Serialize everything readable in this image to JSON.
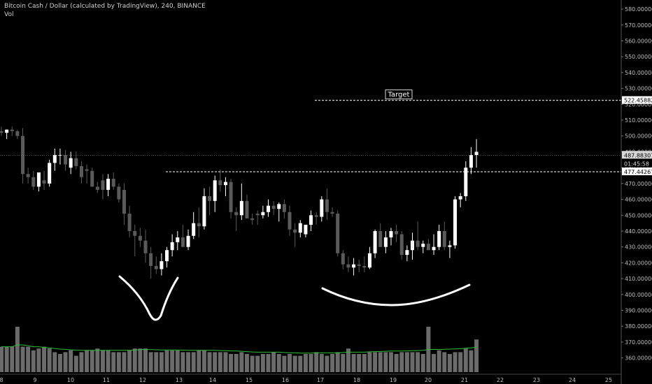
{
  "header": {
    "symbol_line": "Bitcoin Cash / Dollar (calculated by TradingView), 240, BINANCE",
    "indicator": "Vol"
  },
  "price_axis": {
    "tick_labels": [
      "580.000000",
      "570.000000",
      "560.000000",
      "550.000000",
      "540.000000",
      "530.000000",
      "520.000000",
      "510.000000",
      "500.000000",
      "490.000000",
      "480.000000",
      "470.000000",
      "460.000000",
      "450.000000",
      "440.000000",
      "430.000000",
      "420.000000",
      "410.000000",
      "400.000000",
      "390.000000",
      "380.000000",
      "370.000000",
      "360.000000"
    ],
    "tags": {
      "target": "522.458820",
      "current": "487.883073",
      "countdown": "01:45:58",
      "support": "477.442676"
    }
  },
  "time_axis": {
    "tick_labels": [
      "8",
      "9",
      "10",
      "11",
      "12",
      "13",
      "14",
      "15",
      "16",
      "17",
      "18",
      "19",
      "20",
      "21",
      "22",
      "23",
      "24",
      "25"
    ]
  },
  "annotations": {
    "target_label": "Target"
  },
  "colors": {
    "background": "#000000",
    "up_candle": "#ffffff",
    "down_candle": "#5a5a5a",
    "volume": "#6b6b6b",
    "volume_ma": "#2fbf3a",
    "dashed_line": "#ffffff"
  },
  "chart_data": {
    "type": "candlestick",
    "ylim": [
      355,
      584
    ],
    "price_levels": {
      "target": 522.45882,
      "support": 477.442676,
      "current": 487.883073
    },
    "candles": [
      {
        "o": 503,
        "h": 506,
        "l": 500,
        "c": 502
      },
      {
        "o": 502,
        "h": 504,
        "l": 498,
        "c": 504
      },
      {
        "o": 504,
        "h": 506,
        "l": 500,
        "c": 503
      },
      {
        "o": 503,
        "h": 504,
        "l": 498,
        "c": 500
      },
      {
        "o": 500,
        "h": 505,
        "l": 470,
        "c": 476
      },
      {
        "o": 476,
        "h": 480,
        "l": 470,
        "c": 474
      },
      {
        "o": 474,
        "h": 478,
        "l": 466,
        "c": 468
      },
      {
        "o": 468,
        "h": 477,
        "l": 465,
        "c": 477
      },
      {
        "o": 472,
        "h": 478,
        "l": 466,
        "c": 470
      },
      {
        "o": 470,
        "h": 485,
        "l": 468,
        "c": 483
      },
      {
        "o": 483,
        "h": 492,
        "l": 478,
        "c": 488
      },
      {
        "o": 488,
        "h": 492,
        "l": 482,
        "c": 488
      },
      {
        "o": 488,
        "h": 491,
        "l": 478,
        "c": 482
      },
      {
        "o": 480,
        "h": 490,
        "l": 476,
        "c": 486
      },
      {
        "o": 486,
        "h": 490,
        "l": 479,
        "c": 481
      },
      {
        "o": 481,
        "h": 484,
        "l": 470,
        "c": 474
      },
      {
        "o": 479,
        "h": 482,
        "l": 470,
        "c": 478
      },
      {
        "o": 478,
        "h": 480,
        "l": 468,
        "c": 468
      },
      {
        "o": 468,
        "h": 471,
        "l": 464,
        "c": 466
      },
      {
        "o": 472,
        "h": 476,
        "l": 460,
        "c": 466
      },
      {
        "o": 466,
        "h": 476,
        "l": 462,
        "c": 473
      },
      {
        "o": 473,
        "h": 477,
        "l": 466,
        "c": 468
      },
      {
        "o": 468,
        "h": 470,
        "l": 458,
        "c": 460
      },
      {
        "o": 466,
        "h": 470,
        "l": 444,
        "c": 451
      },
      {
        "o": 451,
        "h": 456,
        "l": 436,
        "c": 440
      },
      {
        "o": 440,
        "h": 444,
        "l": 424,
        "c": 437
      },
      {
        "o": 437,
        "h": 442,
        "l": 430,
        "c": 434
      },
      {
        "o": 434,
        "h": 441,
        "l": 420,
        "c": 426
      },
      {
        "o": 426,
        "h": 430,
        "l": 410,
        "c": 418
      },
      {
        "o": 418,
        "h": 424,
        "l": 413,
        "c": 416
      },
      {
        "o": 416,
        "h": 426,
        "l": 412,
        "c": 421
      },
      {
        "o": 421,
        "h": 430,
        "l": 417,
        "c": 428
      },
      {
        "o": 428,
        "h": 438,
        "l": 424,
        "c": 433
      },
      {
        "o": 433,
        "h": 440,
        "l": 428,
        "c": 436
      },
      {
        "o": 436,
        "h": 444,
        "l": 430,
        "c": 430
      },
      {
        "o": 430,
        "h": 441,
        "l": 428,
        "c": 437
      },
      {
        "o": 437,
        "h": 452,
        "l": 435,
        "c": 445
      },
      {
        "o": 445,
        "h": 455,
        "l": 436,
        "c": 443
      },
      {
        "o": 443,
        "h": 467,
        "l": 441,
        "c": 462
      },
      {
        "o": 462,
        "h": 468,
        "l": 450,
        "c": 459
      },
      {
        "o": 459,
        "h": 475,
        "l": 452,
        "c": 472
      },
      {
        "o": 472,
        "h": 479,
        "l": 465,
        "c": 469
      },
      {
        "o": 469,
        "h": 474,
        "l": 462,
        "c": 471
      },
      {
        "o": 471,
        "h": 473,
        "l": 448,
        "c": 452
      },
      {
        "o": 452,
        "h": 455,
        "l": 440,
        "c": 450
      },
      {
        "o": 450,
        "h": 470,
        "l": 447,
        "c": 459
      },
      {
        "o": 459,
        "h": 463,
        "l": 448,
        "c": 448
      },
      {
        "o": 448,
        "h": 451,
        "l": 444,
        "c": 447
      },
      {
        "o": 451,
        "h": 453,
        "l": 444,
        "c": 450
      },
      {
        "o": 450,
        "h": 456,
        "l": 448,
        "c": 452
      },
      {
        "o": 452,
        "h": 460,
        "l": 449,
        "c": 456
      },
      {
        "o": 456,
        "h": 459,
        "l": 450,
        "c": 454
      },
      {
        "o": 454,
        "h": 458,
        "l": 446,
        "c": 457
      },
      {
        "o": 457,
        "h": 460,
        "l": 448,
        "c": 452
      },
      {
        "o": 452,
        "h": 456,
        "l": 437,
        "c": 441
      },
      {
        "o": 441,
        "h": 445,
        "l": 430,
        "c": 439
      },
      {
        "o": 439,
        "h": 447,
        "l": 436,
        "c": 445
      },
      {
        "o": 438,
        "h": 444,
        "l": 436,
        "c": 444
      },
      {
        "o": 444,
        "h": 453,
        "l": 440,
        "c": 450
      },
      {
        "o": 450,
        "h": 452,
        "l": 444,
        "c": 449
      },
      {
        "o": 449,
        "h": 462,
        "l": 446,
        "c": 460
      },
      {
        "o": 460,
        "h": 467,
        "l": 447,
        "c": 452
      },
      {
        "o": 452,
        "h": 455,
        "l": 449,
        "c": 451
      },
      {
        "o": 451,
        "h": 453,
        "l": 424,
        "c": 426
      },
      {
        "o": 426,
        "h": 428,
        "l": 416,
        "c": 419
      },
      {
        "o": 419,
        "h": 424,
        "l": 414,
        "c": 417
      },
      {
        "o": 417,
        "h": 423,
        "l": 412,
        "c": 419
      },
      {
        "o": 419,
        "h": 422,
        "l": 414,
        "c": 418
      },
      {
        "o": 418,
        "h": 424,
        "l": 414,
        "c": 417
      },
      {
        "o": 417,
        "h": 430,
        "l": 416,
        "c": 426
      },
      {
        "o": 426,
        "h": 441,
        "l": 423,
        "c": 440
      },
      {
        "o": 440,
        "h": 445,
        "l": 430,
        "c": 430
      },
      {
        "o": 430,
        "h": 440,
        "l": 426,
        "c": 436
      },
      {
        "o": 436,
        "h": 442,
        "l": 431,
        "c": 440
      },
      {
        "o": 440,
        "h": 444,
        "l": 433,
        "c": 438
      },
      {
        "o": 438,
        "h": 440,
        "l": 422,
        "c": 425
      },
      {
        "o": 425,
        "h": 431,
        "l": 421,
        "c": 428
      },
      {
        "o": 428,
        "h": 439,
        "l": 422,
        "c": 434
      },
      {
        "o": 434,
        "h": 446,
        "l": 428,
        "c": 430
      },
      {
        "o": 430,
        "h": 434,
        "l": 426,
        "c": 432
      },
      {
        "o": 432,
        "h": 435,
        "l": 428,
        "c": 428
      },
      {
        "o": 428,
        "h": 438,
        "l": 425,
        "c": 430
      },
      {
        "o": 430,
        "h": 444,
        "l": 428,
        "c": 440
      },
      {
        "o": 440,
        "h": 446,
        "l": 428,
        "c": 430
      },
      {
        "o": 430,
        "h": 434,
        "l": 423,
        "c": 431
      },
      {
        "o": 431,
        "h": 462,
        "l": 429,
        "c": 460
      },
      {
        "o": 460,
        "h": 464,
        "l": 455,
        "c": 462
      },
      {
        "o": 462,
        "h": 484,
        "l": 459,
        "c": 480
      },
      {
        "o": 480,
        "h": 493,
        "l": 476,
        "c": 488
      },
      {
        "o": 488,
        "h": 498,
        "l": 480,
        "c": 490
      }
    ],
    "volume": [
      14,
      14,
      14,
      25,
      14,
      14,
      12,
      13,
      14,
      13,
      11,
      10,
      11,
      12,
      9,
      11,
      12,
      12,
      13,
      12,
      12,
      11,
      11,
      11,
      12,
      13,
      13,
      13,
      11,
      11,
      11,
      12,
      12,
      12,
      11,
      11,
      11,
      12,
      12,
      11,
      11,
      11,
      11,
      10,
      10,
      11,
      10,
      9,
      9,
      10,
      10,
      11,
      10,
      9,
      10,
      9,
      9,
      10,
      10,
      11,
      10,
      9,
      10,
      11,
      10,
      13,
      10,
      10,
      10,
      11,
      11,
      11,
      11,
      11,
      10,
      11,
      11,
      11,
      11,
      10,
      25,
      10,
      12,
      11,
      10,
      11,
      11,
      13,
      12,
      18
    ],
    "volume_ma": [
      14,
      14,
      14,
      15,
      15,
      14.5,
      14,
      14,
      13.6,
      13.3,
      13,
      12.7,
      12.5,
      12.3,
      12.1,
      12,
      12,
      12,
      12,
      12,
      12,
      12,
      12,
      12,
      12,
      12.2,
      12.4,
      12.5,
      12.4,
      12.3,
      12.2,
      12.2,
      12.2,
      12.2,
      12.1,
      12,
      12,
      12,
      12,
      12,
      12,
      11.9,
      11.8,
      11.7,
      11.6,
      11.5,
      11.3,
      11.1,
      11,
      11,
      11,
      11,
      11,
      10.8,
      10.7,
      10.6,
      10.5,
      10.5,
      10.5,
      10.6,
      10.6,
      10.6,
      10.6,
      10.6,
      10.8,
      11,
      11,
      11,
      11,
      11.2,
      11.3,
      11.4,
      11.5,
      11.6,
      11.6,
      11.6,
      11.7,
      11.8,
      11.9,
      12,
      12.5,
      12.5,
      12.5,
      12.6,
      12.7,
      12.8,
      12.9,
      13.2,
      13.4,
      13.7
    ],
    "volume_ylim": [
      0,
      30
    ]
  }
}
